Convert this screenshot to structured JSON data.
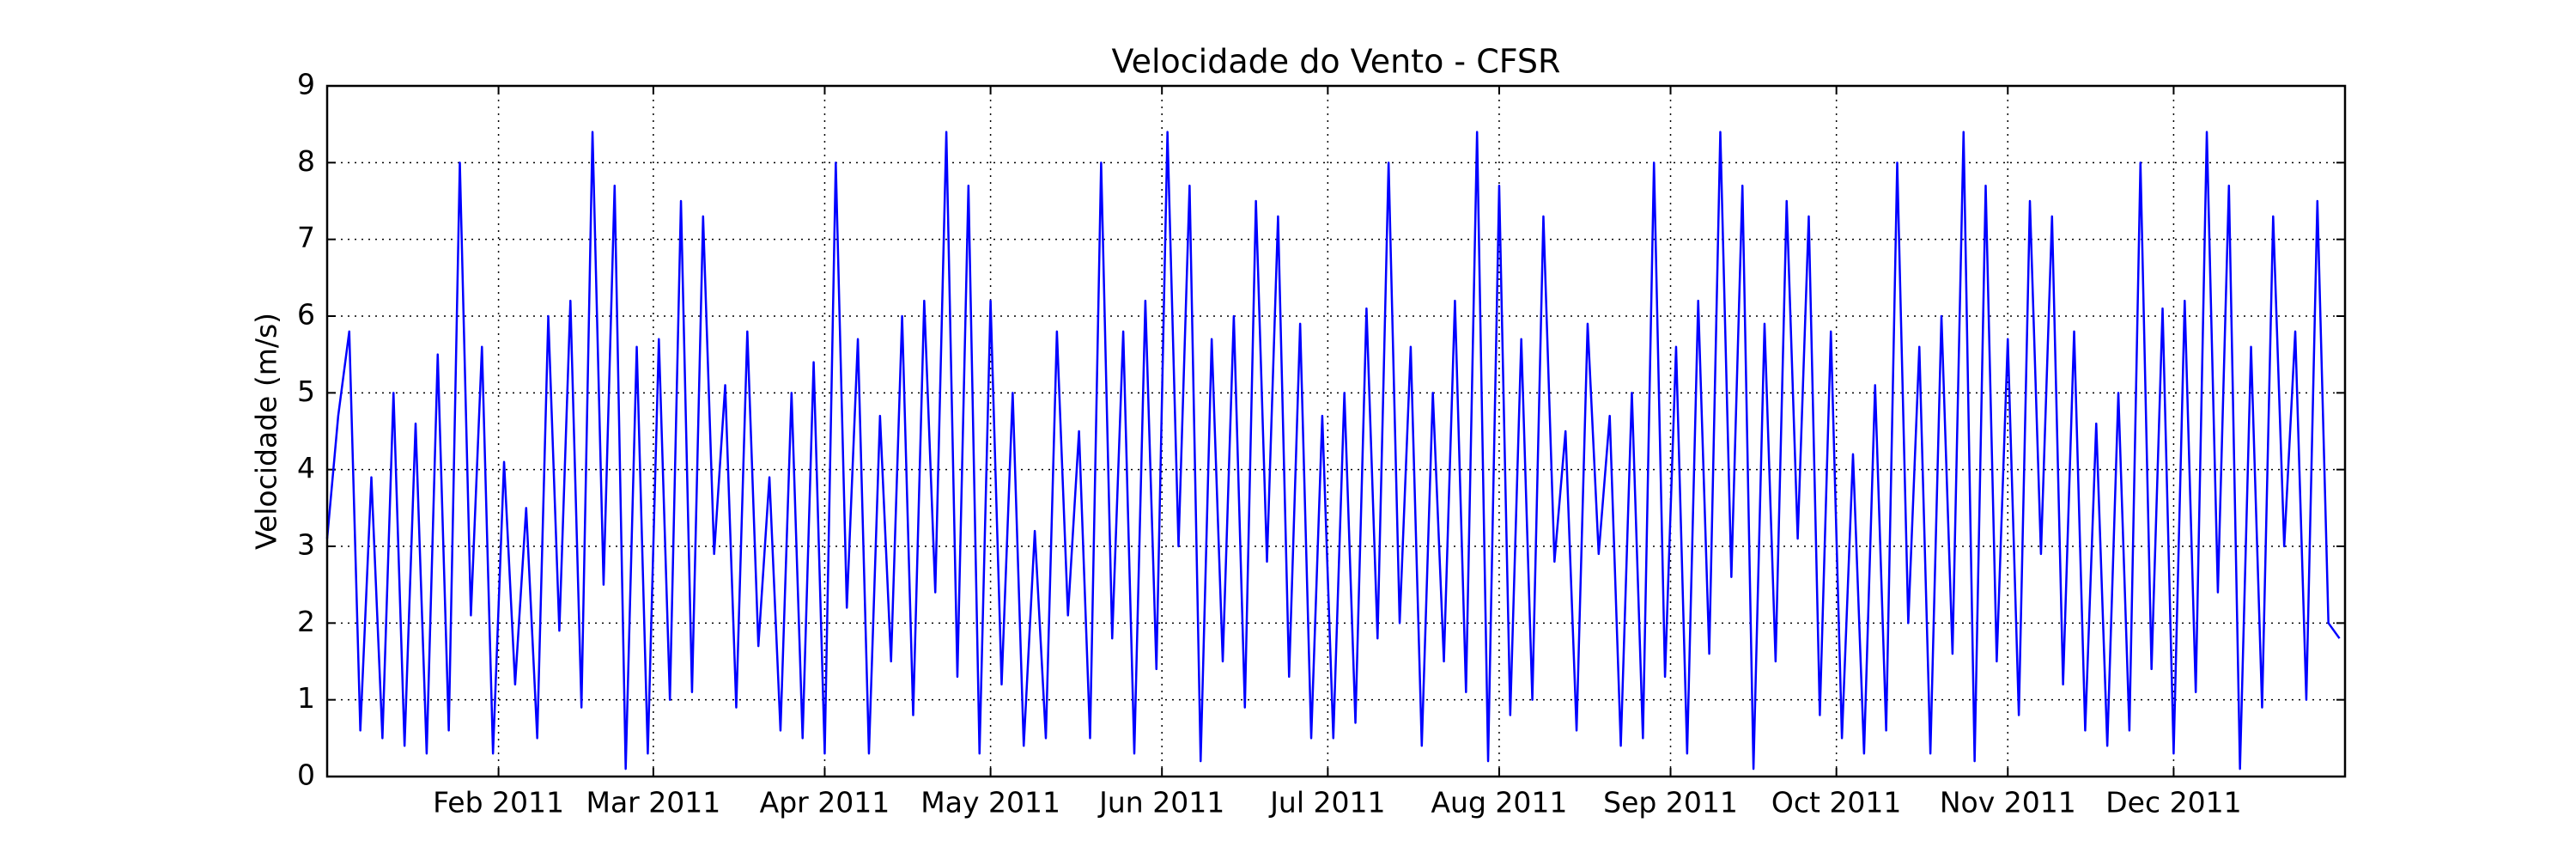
{
  "chart_data": {
    "type": "line",
    "title": "Velocidade do Vento - CFSR",
    "ylabel": "Velocidade (m/s)",
    "color": "#0000ff",
    "grid": true,
    "xlim": [
      0,
      365
    ],
    "ylim": [
      0,
      9
    ],
    "xticks": [
      {
        "value": 31,
        "label": "Feb 2011"
      },
      {
        "value": 59,
        "label": "Mar 2011"
      },
      {
        "value": 90,
        "label": "Apr 2011"
      },
      {
        "value": 120,
        "label": "May 2011"
      },
      {
        "value": 151,
        "label": "Jun 2011"
      },
      {
        "value": 181,
        "label": "Jul 2011"
      },
      {
        "value": 212,
        "label": "Aug 2011"
      },
      {
        "value": 243,
        "label": "Sep 2011"
      },
      {
        "value": 273,
        "label": "Oct 2011"
      },
      {
        "value": 304,
        "label": "Nov 2011"
      },
      {
        "value": 334,
        "label": "Dec 2011"
      }
    ],
    "yticks": [
      0,
      1,
      2,
      3,
      4,
      5,
      6,
      7,
      8,
      9
    ],
    "x": [
      0,
      2,
      4,
      6,
      8,
      10,
      12,
      14,
      16,
      18,
      20,
      22,
      24,
      26,
      28,
      30,
      32,
      34,
      36,
      38,
      40,
      42,
      44,
      46,
      48,
      50,
      52,
      54,
      56,
      58,
      60,
      62,
      64,
      66,
      68,
      70,
      72,
      74,
      76,
      78,
      80,
      82,
      84,
      86,
      88,
      90,
      92,
      94,
      96,
      98,
      100,
      102,
      104,
      106,
      108,
      110,
      112,
      114,
      116,
      118,
      120,
      122,
      124,
      126,
      128,
      130,
      132,
      134,
      136,
      138,
      140,
      142,
      144,
      146,
      148,
      150,
      152,
      154,
      156,
      158,
      160,
      162,
      164,
      166,
      168,
      170,
      172,
      174,
      176,
      178,
      180,
      182,
      184,
      186,
      188,
      190,
      192,
      194,
      196,
      198,
      200,
      202,
      204,
      206,
      208,
      210,
      212,
      214,
      216,
      218,
      220,
      222,
      224,
      226,
      228,
      230,
      232,
      234,
      236,
      238,
      240,
      242,
      244,
      246,
      248,
      250,
      252,
      254,
      256,
      258,
      260,
      262,
      264,
      266,
      268,
      270,
      272,
      274,
      276,
      278,
      280,
      282,
      284,
      286,
      288,
      290,
      292,
      294,
      296,
      298,
      300,
      302,
      304,
      306,
      308,
      310,
      312,
      314,
      316,
      318,
      320,
      322,
      324,
      326,
      328,
      330,
      332,
      334,
      336,
      338,
      340,
      342,
      344,
      346,
      348,
      350,
      352,
      354,
      356,
      358,
      360,
      362,
      364
    ],
    "values": [
      3.1,
      4.7,
      5.8,
      0.6,
      3.9,
      0.5,
      5.0,
      0.4,
      4.6,
      0.3,
      5.5,
      0.6,
      8.0,
      2.1,
      5.6,
      0.3,
      4.1,
      1.2,
      3.5,
      0.5,
      6.0,
      1.9,
      6.2,
      0.9,
      8.4,
      2.5,
      7.7,
      0.1,
      5.6,
      0.3,
      5.7,
      1.0,
      7.5,
      1.1,
      7.3,
      2.9,
      5.1,
      0.9,
      5.8,
      1.7,
      3.9,
      0.6,
      5.0,
      0.5,
      5.4,
      0.3,
      8.0,
      2.2,
      5.7,
      0.3,
      4.7,
      1.5,
      6.0,
      0.8,
      6.2,
      2.4,
      8.4,
      1.3,
      7.7,
      0.3,
      6.2,
      1.2,
      5.0,
      0.4,
      3.2,
      0.5,
      5.8,
      2.1,
      4.5,
      0.5,
      8.0,
      1.8,
      5.8,
      0.3,
      6.2,
      1.4,
      8.4,
      3.0,
      7.7,
      0.2,
      5.7,
      1.5,
      6.0,
      0.9,
      7.5,
      2.8,
      7.3,
      1.3,
      5.9,
      0.5,
      4.7,
      0.5,
      5.0,
      0.7,
      6.1,
      1.8,
      8.0,
      2.0,
      5.6,
      0.4,
      5.0,
      1.5,
      6.2,
      1.1,
      8.4,
      0.2,
      7.7,
      0.8,
      5.7,
      1.0,
      7.3,
      2.8,
      4.5,
      0.6,
      5.9,
      2.9,
      4.7,
      0.4,
      5.0,
      0.5,
      8.0,
      1.3,
      5.6,
      0.3,
      6.2,
      1.6,
      8.4,
      2.6,
      7.7,
      0.1,
      5.9,
      1.5,
      7.5,
      3.1,
      7.3,
      0.8,
      5.8,
      0.5,
      4.2,
      0.3,
      5.1,
      0.6,
      8.0,
      2.0,
      5.6,
      0.3,
      6.0,
      1.6,
      8.4,
      0.2,
      7.7,
      1.5,
      5.7,
      0.8,
      7.5,
      2.9,
      7.3,
      1.2,
      5.8,
      0.6,
      4.6,
      0.4,
      5.0,
      0.6,
      8.0,
      1.4,
      6.1,
      0.3,
      6.2,
      1.1,
      8.4,
      2.4,
      7.7,
      0.1,
      5.6,
      0.9,
      7.3,
      3.0,
      5.8,
      1.0,
      7.5,
      2.0,
      1.8
    ]
  }
}
